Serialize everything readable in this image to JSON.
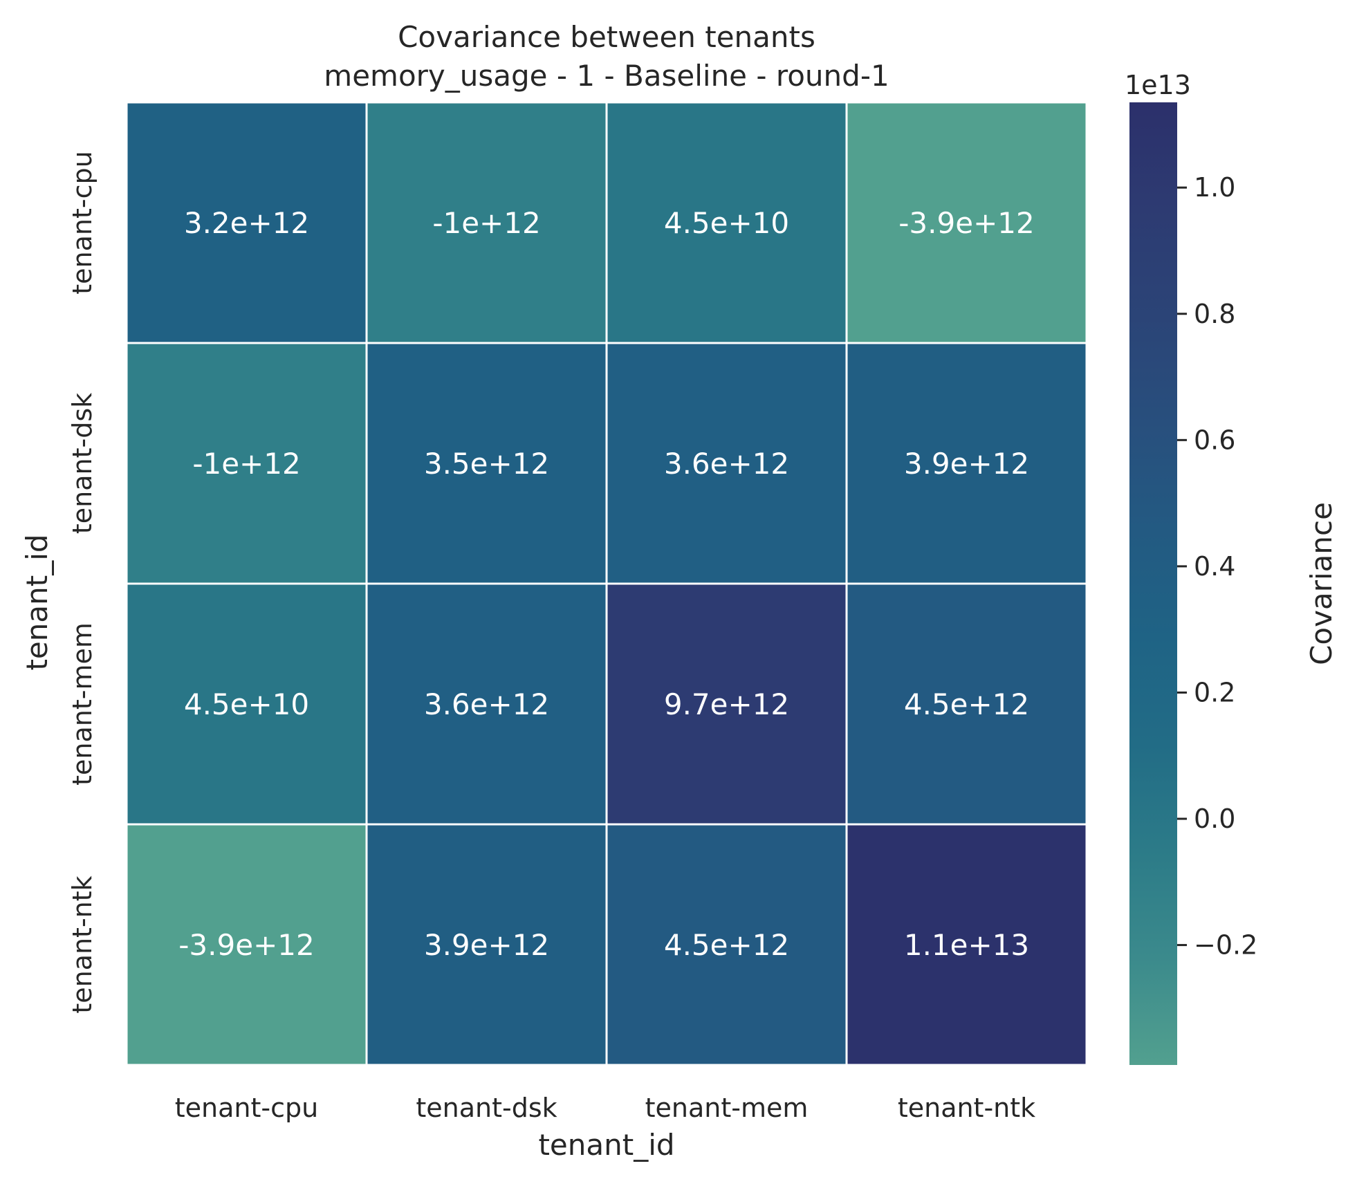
{
  "chart_data": {
    "type": "heatmap",
    "title": "Covariance between tenants",
    "subtitle": "memory_usage - 1 - Baseline - round-1",
    "xlabel": "tenant_id",
    "ylabel": "tenant_id",
    "x_categories": [
      "tenant-cpu",
      "tenant-dsk",
      "tenant-mem",
      "tenant-ntk"
    ],
    "y_categories": [
      "tenant-cpu",
      "tenant-dsk",
      "tenant-mem",
      "tenant-ntk"
    ],
    "values": [
      [
        3200000000000.0,
        -1000000000000.0,
        45000000000.0,
        -3900000000000.0
      ],
      [
        -1000000000000.0,
        3500000000000.0,
        3600000000000.0,
        3900000000000.0
      ],
      [
        45000000000.0,
        3600000000000.0,
        9700000000000.0,
        4500000000000.0
      ],
      [
        -3900000000000.0,
        3900000000000.0,
        4500000000000.0,
        11000000000000.0
      ]
    ],
    "cell_labels": [
      [
        "3.2e+12",
        "-1e+12",
        "4.5e+10",
        "-3.9e+12"
      ],
      [
        "-1e+12",
        "3.5e+12",
        "3.6e+12",
        "3.9e+12"
      ],
      [
        "4.5e+10",
        "3.6e+12",
        "9.7e+12",
        "4.5e+12"
      ],
      [
        "-3.9e+12",
        "3.9e+12",
        "4.5e+12",
        "1.1e+13"
      ]
    ],
    "colorbar": {
      "label": "Covariance",
      "offset_text": "1e13",
      "range": [
        -0.39,
        1.135
      ],
      "ticks": [
        -0.2,
        0.0,
        0.2,
        0.4,
        0.6,
        0.8,
        1.0
      ],
      "tick_labels": [
        "−0.2",
        "0.0",
        "0.2",
        "0.4",
        "0.6",
        "0.8",
        "1.0"
      ],
      "colormap": [
        "#52a08f",
        "#3b8a8c",
        "#2c7b88",
        "#226c86",
        "#1f6385",
        "#235a82",
        "#284f7d",
        "#2b4477",
        "#2d3b72",
        "#2c306b"
      ]
    },
    "cell_border_color": "#ffffff"
  }
}
